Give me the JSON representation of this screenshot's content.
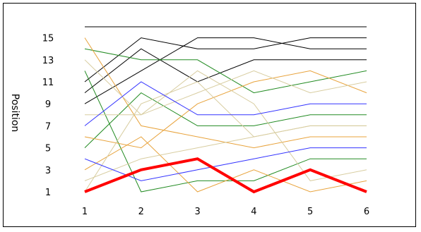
{
  "chart_data": {
    "type": "line",
    "ylabel": "Position",
    "xlabel": "",
    "x": [
      1,
      2,
      3,
      4,
      5,
      6
    ],
    "x_ticks": [
      "1",
      "2",
      "3",
      "4",
      "5",
      "6"
    ],
    "y_ticks": [
      "1",
      "3",
      "5",
      "7",
      "9",
      "11",
      "13",
      "15"
    ],
    "ylim": [
      1,
      16
    ],
    "xlim": [
      1,
      6
    ],
    "grid": false,
    "legend": "none",
    "series": [
      {
        "color": "#000000",
        "width": 1,
        "values": [
          16,
          16,
          16,
          16,
          16,
          16
        ]
      },
      {
        "color": "#000000",
        "width": 1,
        "values": [
          11,
          15,
          14,
          14,
          15,
          15
        ]
      },
      {
        "color": "#000000",
        "width": 1,
        "values": [
          10,
          14,
          11,
          13,
          13,
          13
        ]
      },
      {
        "color": "#000000",
        "width": 1,
        "values": [
          9,
          12,
          15,
          15,
          14,
          14
        ]
      },
      {
        "color": "#228B22",
        "width": 1,
        "values": [
          14,
          13,
          13,
          10,
          11,
          12
        ]
      },
      {
        "color": "#228B22",
        "width": 1,
        "values": [
          12,
          1,
          2,
          2,
          4,
          4
        ]
      },
      {
        "color": "#228B22",
        "width": 1,
        "values": [
          5,
          10,
          7,
          7,
          8,
          8
        ]
      },
      {
        "color": "#E8A33C",
        "width": 1,
        "values": [
          15,
          7,
          6,
          5,
          6,
          6
        ]
      },
      {
        "color": "#E8A33C",
        "width": 1,
        "values": [
          6,
          5,
          9,
          11,
          12,
          10
        ]
      },
      {
        "color": "#E8A33C",
        "width": 1,
        "values": [
          3,
          6,
          1,
          3,
          1,
          2
        ]
      },
      {
        "color": "#D8CDA0",
        "width": 1,
        "values": [
          13,
          8,
          12,
          9,
          2,
          3
        ]
      },
      {
        "color": "#D8CDA0",
        "width": 1,
        "values": [
          8,
          8,
          10,
          12,
          10,
          11
        ]
      },
      {
        "color": "#D8CDA0",
        "width": 1,
        "values": [
          2,
          4,
          5,
          6,
          7,
          7
        ]
      },
      {
        "color": "#D8CDA0",
        "width": 1,
        "values": [
          1,
          9,
          11,
          6,
          7,
          7
        ]
      },
      {
        "color": "#3333FF",
        "width": 1,
        "values": [
          7,
          11,
          8,
          8,
          9,
          9
        ]
      },
      {
        "color": "#3333FF",
        "width": 1,
        "values": [
          4,
          2,
          3,
          4,
          5,
          5
        ]
      },
      {
        "color": "#FF0000",
        "width": 4,
        "values": [
          1,
          3,
          4,
          1,
          3,
          1
        ]
      }
    ]
  }
}
